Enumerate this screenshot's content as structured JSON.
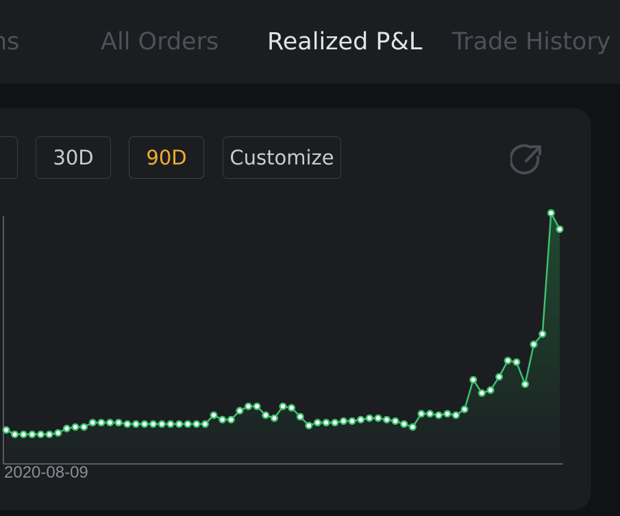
{
  "tabs": [
    {
      "label": "ns",
      "active": false
    },
    {
      "label": "All Orders",
      "active": false
    },
    {
      "label": "Realized P&L",
      "active": true
    },
    {
      "label": "Trade History",
      "active": false
    }
  ],
  "range_buttons": [
    {
      "label": "",
      "active": false
    },
    {
      "label": "30D",
      "active": false
    },
    {
      "label": "90D",
      "active": true
    },
    {
      "label": "Customize",
      "active": false
    }
  ],
  "refresh_icon": "share-arrow-icon",
  "colors": {
    "accent": "#f0ad2e",
    "line": "#3ec06f",
    "background": "#1c1d21"
  },
  "chart_data": {
    "type": "area",
    "x_tick_labels": [
      "2020-08-09"
    ],
    "values": [
      23,
      20,
      20,
      20,
      20,
      20,
      21,
      24,
      25,
      25,
      28,
      28,
      28,
      28,
      27,
      27,
      27,
      27,
      27,
      27,
      27,
      27,
      27,
      27,
      33,
      30,
      30,
      36,
      39,
      39,
      33,
      31,
      39,
      38,
      32,
      26,
      28,
      28,
      28,
      29,
      29,
      30,
      31,
      31,
      30,
      29,
      27,
      25,
      34,
      34,
      33,
      34,
      33,
      37,
      57,
      48,
      50,
      59,
      70,
      69,
      54,
      81,
      88,
      170,
      159
    ],
    "ylim": [
      0,
      175
    ],
    "grid": false
  }
}
